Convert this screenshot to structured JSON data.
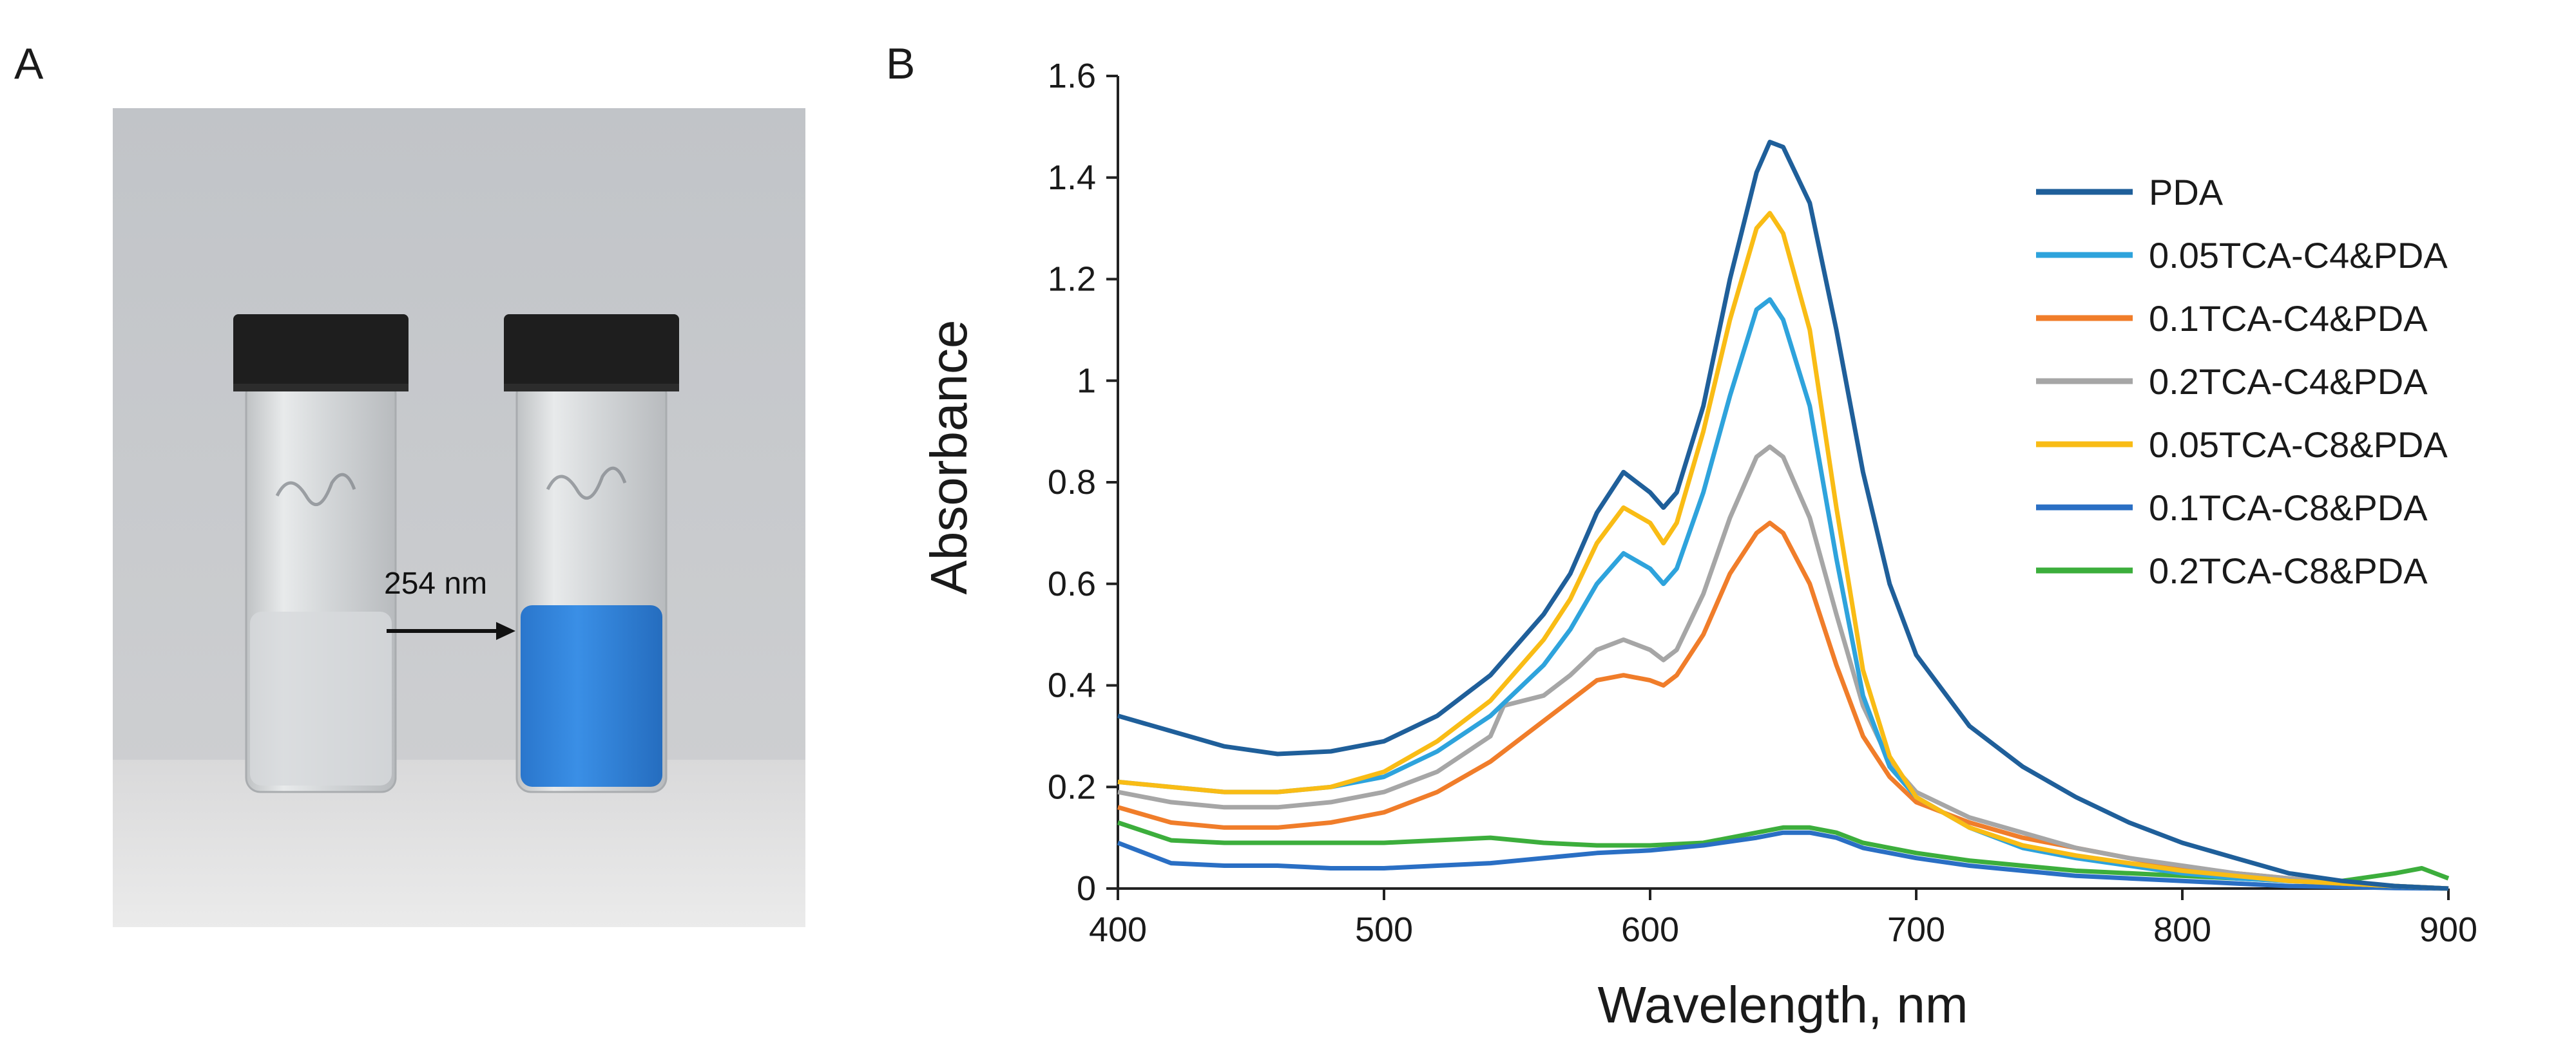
{
  "panels": {
    "a_label": "A",
    "b_label": "B"
  },
  "photo": {
    "description_colors": {
      "background": "#c4c6c9",
      "table": "#e3e3e3",
      "cap": "#1c1c1c",
      "blue_solution": "#2f7fd6"
    },
    "annotation": "254 nm"
  },
  "chart_data": {
    "type": "line",
    "title": "",
    "xlabel": "Wavelength, nm",
    "ylabel": "Absorbance",
    "xlim": [
      400,
      900
    ],
    "ylim": [
      0,
      1.6
    ],
    "xticks": [
      "400",
      "500",
      "600",
      "700",
      "800",
      "900"
    ],
    "yticks": [
      "0",
      "0.2",
      "0.4",
      "0.6",
      "0.8",
      "1",
      "1.2",
      "1.4",
      "1.6"
    ],
    "legend_position": "right",
    "series": [
      {
        "name": "PDA",
        "color": "#1f5f9a",
        "points": [
          [
            400,
            0.34
          ],
          [
            420,
            0.31
          ],
          [
            440,
            0.28
          ],
          [
            460,
            0.265
          ],
          [
            480,
            0.27
          ],
          [
            500,
            0.29
          ],
          [
            520,
            0.34
          ],
          [
            540,
            0.42
          ],
          [
            560,
            0.54
          ],
          [
            570,
            0.62
          ],
          [
            580,
            0.74
          ],
          [
            590,
            0.82
          ],
          [
            600,
            0.78
          ],
          [
            605,
            0.75
          ],
          [
            610,
            0.78
          ],
          [
            620,
            0.95
          ],
          [
            630,
            1.2
          ],
          [
            640,
            1.41
          ],
          [
            645,
            1.47
          ],
          [
            650,
            1.46
          ],
          [
            660,
            1.35
          ],
          [
            670,
            1.1
          ],
          [
            680,
            0.82
          ],
          [
            690,
            0.6
          ],
          [
            700,
            0.46
          ],
          [
            720,
            0.32
          ],
          [
            740,
            0.24
          ],
          [
            760,
            0.18
          ],
          [
            780,
            0.13
          ],
          [
            800,
            0.09
          ],
          [
            820,
            0.06
          ],
          [
            840,
            0.03
          ],
          [
            860,
            0.015
          ],
          [
            880,
            0.005
          ],
          [
            900,
            0.0
          ]
        ]
      },
      {
        "name": "0.05TCA-C4&PDA",
        "color": "#2ea3dc",
        "points": [
          [
            400,
            0.21
          ],
          [
            420,
            0.2
          ],
          [
            440,
            0.19
          ],
          [
            460,
            0.19
          ],
          [
            480,
            0.2
          ],
          [
            500,
            0.22
          ],
          [
            520,
            0.27
          ],
          [
            540,
            0.34
          ],
          [
            560,
            0.44
          ],
          [
            570,
            0.51
          ],
          [
            580,
            0.6
          ],
          [
            590,
            0.66
          ],
          [
            600,
            0.63
          ],
          [
            605,
            0.6
          ],
          [
            610,
            0.63
          ],
          [
            620,
            0.78
          ],
          [
            630,
            0.97
          ],
          [
            640,
            1.14
          ],
          [
            645,
            1.16
          ],
          [
            650,
            1.12
          ],
          [
            660,
            0.95
          ],
          [
            670,
            0.65
          ],
          [
            680,
            0.38
          ],
          [
            690,
            0.24
          ],
          [
            700,
            0.18
          ],
          [
            720,
            0.12
          ],
          [
            740,
            0.08
          ],
          [
            760,
            0.06
          ],
          [
            780,
            0.045
          ],
          [
            800,
            0.03
          ],
          [
            820,
            0.02
          ],
          [
            840,
            0.015
          ],
          [
            860,
            0.01
          ],
          [
            880,
            0.005
          ],
          [
            900,
            0.0
          ]
        ]
      },
      {
        "name": "0.1TCA-C4&PDA",
        "color": "#f07d2a",
        "points": [
          [
            400,
            0.16
          ],
          [
            420,
            0.13
          ],
          [
            440,
            0.12
          ],
          [
            460,
            0.12
          ],
          [
            480,
            0.13
          ],
          [
            500,
            0.15
          ],
          [
            520,
            0.19
          ],
          [
            540,
            0.25
          ],
          [
            560,
            0.33
          ],
          [
            570,
            0.37
          ],
          [
            580,
            0.41
          ],
          [
            590,
            0.42
          ],
          [
            600,
            0.41
          ],
          [
            605,
            0.4
          ],
          [
            610,
            0.42
          ],
          [
            620,
            0.5
          ],
          [
            630,
            0.62
          ],
          [
            640,
            0.7
          ],
          [
            645,
            0.72
          ],
          [
            650,
            0.7
          ],
          [
            660,
            0.6
          ],
          [
            670,
            0.44
          ],
          [
            680,
            0.3
          ],
          [
            690,
            0.22
          ],
          [
            700,
            0.17
          ],
          [
            720,
            0.13
          ],
          [
            740,
            0.1
          ],
          [
            760,
            0.08
          ],
          [
            780,
            0.06
          ],
          [
            800,
            0.04
          ],
          [
            820,
            0.03
          ],
          [
            840,
            0.02
          ],
          [
            860,
            0.01
          ],
          [
            880,
            0.005
          ],
          [
            900,
            0.0
          ]
        ]
      },
      {
        "name": "0.2TCA-C4&PDA",
        "color": "#a6a6a6",
        "points": [
          [
            400,
            0.19
          ],
          [
            420,
            0.17
          ],
          [
            440,
            0.16
          ],
          [
            460,
            0.16
          ],
          [
            480,
            0.17
          ],
          [
            500,
            0.19
          ],
          [
            520,
            0.23
          ],
          [
            540,
            0.3
          ],
          [
            545,
            0.36
          ],
          [
            560,
            0.38
          ],
          [
            570,
            0.42
          ],
          [
            580,
            0.47
          ],
          [
            590,
            0.49
          ],
          [
            600,
            0.47
          ],
          [
            605,
            0.45
          ],
          [
            610,
            0.47
          ],
          [
            620,
            0.58
          ],
          [
            630,
            0.73
          ],
          [
            640,
            0.85
          ],
          [
            645,
            0.87
          ],
          [
            650,
            0.85
          ],
          [
            660,
            0.73
          ],
          [
            670,
            0.54
          ],
          [
            680,
            0.36
          ],
          [
            690,
            0.25
          ],
          [
            700,
            0.19
          ],
          [
            720,
            0.14
          ],
          [
            740,
            0.11
          ],
          [
            760,
            0.08
          ],
          [
            780,
            0.06
          ],
          [
            800,
            0.045
          ],
          [
            820,
            0.03
          ],
          [
            840,
            0.02
          ],
          [
            860,
            0.01
          ],
          [
            880,
            0.005
          ],
          [
            900,
            0.0
          ]
        ]
      },
      {
        "name": "0.05TCA-C8&PDA",
        "color": "#f9bc15",
        "points": [
          [
            400,
            0.21
          ],
          [
            420,
            0.2
          ],
          [
            440,
            0.19
          ],
          [
            460,
            0.19
          ],
          [
            480,
            0.2
          ],
          [
            500,
            0.23
          ],
          [
            520,
            0.29
          ],
          [
            540,
            0.37
          ],
          [
            560,
            0.49
          ],
          [
            570,
            0.57
          ],
          [
            580,
            0.68
          ],
          [
            590,
            0.75
          ],
          [
            600,
            0.72
          ],
          [
            605,
            0.68
          ],
          [
            610,
            0.72
          ],
          [
            620,
            0.9
          ],
          [
            630,
            1.12
          ],
          [
            640,
            1.3
          ],
          [
            645,
            1.33
          ],
          [
            650,
            1.29
          ],
          [
            660,
            1.1
          ],
          [
            670,
            0.75
          ],
          [
            680,
            0.43
          ],
          [
            690,
            0.26
          ],
          [
            700,
            0.18
          ],
          [
            720,
            0.12
          ],
          [
            740,
            0.085
          ],
          [
            760,
            0.065
          ],
          [
            780,
            0.05
          ],
          [
            800,
            0.035
          ],
          [
            820,
            0.025
          ],
          [
            840,
            0.015
          ],
          [
            860,
            0.01
          ],
          [
            880,
            0.005
          ],
          [
            900,
            0.0
          ]
        ]
      },
      {
        "name": "0.1TCA-C8&PDA",
        "color": "#2a6fc4",
        "points": [
          [
            400,
            0.09
          ],
          [
            420,
            0.05
          ],
          [
            440,
            0.045
          ],
          [
            460,
            0.045
          ],
          [
            480,
            0.04
          ],
          [
            500,
            0.04
          ],
          [
            520,
            0.045
          ],
          [
            540,
            0.05
          ],
          [
            560,
            0.06
          ],
          [
            580,
            0.07
          ],
          [
            600,
            0.075
          ],
          [
            620,
            0.085
          ],
          [
            640,
            0.1
          ],
          [
            650,
            0.11
          ],
          [
            660,
            0.11
          ],
          [
            670,
            0.1
          ],
          [
            680,
            0.08
          ],
          [
            700,
            0.06
          ],
          [
            720,
            0.045
          ],
          [
            740,
            0.035
          ],
          [
            760,
            0.025
          ],
          [
            780,
            0.02
          ],
          [
            800,
            0.015
          ],
          [
            820,
            0.01
          ],
          [
            840,
            0.005
          ],
          [
            860,
            0.003
          ],
          [
            880,
            0.001
          ],
          [
            900,
            0.0
          ]
        ]
      },
      {
        "name": "0.2TCA-C8&PDA",
        "color": "#3cae3c",
        "points": [
          [
            400,
            0.13
          ],
          [
            420,
            0.095
          ],
          [
            440,
            0.09
          ],
          [
            460,
            0.09
          ],
          [
            480,
            0.09
          ],
          [
            500,
            0.09
          ],
          [
            520,
            0.095
          ],
          [
            540,
            0.1
          ],
          [
            560,
            0.09
          ],
          [
            580,
            0.085
          ],
          [
            600,
            0.085
          ],
          [
            620,
            0.09
          ],
          [
            640,
            0.11
          ],
          [
            650,
            0.12
          ],
          [
            660,
            0.12
          ],
          [
            670,
            0.11
          ],
          [
            680,
            0.09
          ],
          [
            700,
            0.07
          ],
          [
            720,
            0.055
          ],
          [
            740,
            0.045
          ],
          [
            760,
            0.035
          ],
          [
            780,
            0.03
          ],
          [
            800,
            0.025
          ],
          [
            820,
            0.02
          ],
          [
            840,
            0.015
          ],
          [
            860,
            0.015
          ],
          [
            880,
            0.03
          ],
          [
            890,
            0.04
          ],
          [
            900,
            0.02
          ]
        ]
      }
    ]
  }
}
